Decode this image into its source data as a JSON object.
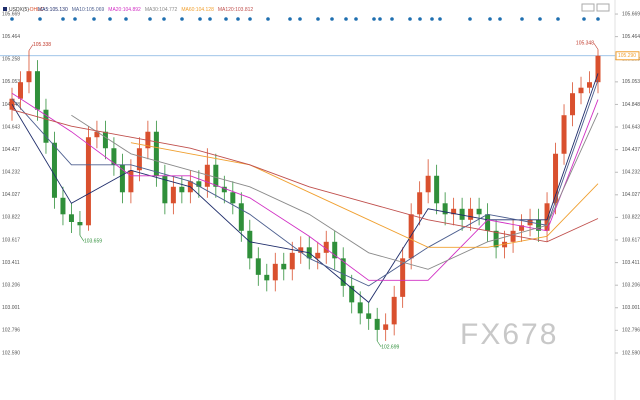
{
  "chart_data": {
    "type": "candlestick",
    "title": "USDX(5)",
    "subtitle": "-OHLC-",
    "open": [
      104.8,
      104.9,
      105.05,
      105.15,
      104.8,
      104.5,
      104.0,
      103.85,
      103.78,
      103.75,
      104.55,
      104.6,
      104.45,
      104.3,
      104.05,
      104.25,
      104.45,
      104.6,
      104.2,
      103.95,
      104.1,
      104.05,
      104.15,
      104.1,
      104.3,
      104.1,
      104.05,
      103.95,
      103.7,
      103.45,
      103.3,
      103.25,
      103.4,
      103.35,
      103.5,
      103.55,
      103.45,
      103.5,
      103.6,
      103.45,
      103.2,
      103.05,
      102.95,
      102.9,
      102.8,
      102.85,
      103.1,
      103.45,
      103.85,
      104.05,
      104.2,
      103.95,
      103.85,
      103.9,
      103.8,
      103.9,
      103.85,
      103.7,
      103.55,
      103.6,
      103.7,
      103.75,
      103.8,
      103.7,
      103.95,
      104.4,
      104.75,
      104.95,
      105.0,
      105.05
    ],
    "high": [
      105.0,
      105.15,
      105.338,
      105.25,
      104.9,
      104.6,
      104.1,
      103.95,
      103.88,
      104.65,
      104.7,
      104.7,
      104.55,
      104.4,
      104.35,
      104.55,
      104.7,
      104.7,
      104.3,
      104.2,
      104.2,
      104.25,
      104.25,
      104.45,
      104.4,
      104.2,
      104.15,
      104.05,
      103.8,
      103.55,
      103.4,
      103.5,
      103.5,
      103.6,
      103.65,
      103.65,
      103.6,
      103.7,
      103.7,
      103.55,
      103.3,
      103.15,
      103.05,
      103.0,
      102.95,
      103.2,
      103.55,
      103.95,
      104.15,
      104.35,
      104.3,
      104.05,
      104.0,
      104.0,
      104.0,
      104.0,
      103.95,
      103.8,
      103.7,
      103.8,
      103.85,
      103.9,
      103.9,
      104.05,
      104.5,
      104.85,
      105.05,
      105.1,
      105.15,
      105.348
    ],
    "low": [
      104.7,
      104.8,
      104.95,
      104.7,
      104.4,
      103.9,
      103.75,
      103.68,
      103.659,
      103.7,
      104.45,
      104.35,
      104.2,
      103.95,
      103.95,
      104.15,
      104.35,
      104.1,
      103.85,
      103.85,
      103.95,
      103.95,
      104.0,
      104.0,
      104.0,
      103.95,
      103.85,
      103.6,
      103.35,
      103.2,
      103.15,
      103.15,
      103.25,
      103.25,
      103.4,
      103.35,
      103.35,
      103.4,
      103.35,
      103.1,
      102.95,
      102.85,
      102.8,
      102.699,
      102.7,
      102.75,
      103.0,
      103.35,
      103.75,
      103.95,
      103.85,
      103.75,
      103.75,
      103.7,
      103.7,
      103.75,
      103.6,
      103.45,
      103.45,
      103.5,
      103.6,
      103.65,
      103.6,
      103.6,
      103.85,
      104.3,
      104.65,
      104.85,
      104.95,
      104.95
    ],
    "close": [
      104.9,
      105.05,
      105.15,
      104.8,
      104.5,
      104.0,
      103.85,
      103.78,
      103.75,
      104.55,
      104.6,
      104.45,
      104.3,
      104.05,
      104.25,
      104.45,
      104.6,
      104.2,
      103.95,
      104.1,
      104.05,
      104.15,
      104.1,
      104.3,
      104.1,
      104.05,
      103.95,
      103.7,
      103.45,
      103.3,
      103.25,
      103.4,
      103.35,
      103.5,
      103.55,
      103.45,
      103.5,
      103.6,
      103.45,
      103.2,
      103.05,
      102.95,
      102.9,
      102.8,
      102.85,
      103.1,
      103.45,
      103.85,
      104.05,
      104.2,
      103.95,
      103.85,
      103.9,
      103.8,
      103.9,
      103.85,
      103.7,
      103.55,
      103.6,
      103.7,
      103.75,
      103.8,
      103.7,
      103.95,
      104.4,
      104.75,
      104.95,
      105.0,
      105.05,
      105.29
    ],
    "up_color": "#d9502e",
    "down_color": "#2f8f3a",
    "ma_x": [
      0,
      7,
      14,
      21,
      28,
      35,
      42,
      49,
      56,
      63,
      69
    ],
    "series": [
      {
        "name": "MA5:105.130",
        "color": "#1f2d6b",
        "values": [
          104.85,
          103.95,
          104.25,
          104.1,
          103.6,
          103.5,
          103.05,
          103.9,
          103.8,
          103.8,
          105.13
        ]
      },
      {
        "name": "MA10:105.069",
        "color": "#4d5f8f",
        "values": [
          104.9,
          104.3,
          104.3,
          104.15,
          103.85,
          103.45,
          103.2,
          103.55,
          103.85,
          103.75,
          105.069
        ]
      },
      {
        "name": "MA20:104.892",
        "color": "#d12fc4",
        "values": [
          104.95,
          104.6,
          104.2,
          104.2,
          104.0,
          103.65,
          103.25,
          103.25,
          103.8,
          103.7,
          104.892
        ]
      },
      {
        "name": "MA30:104.772",
        "color": "#8a8a8a",
        "values": [
          null,
          104.75,
          104.4,
          104.25,
          104.1,
          103.85,
          103.5,
          103.35,
          103.6,
          103.75,
          104.772
        ]
      },
      {
        "name": "MA60:104.128",
        "color": "#f0a030",
        "values": [
          null,
          null,
          104.5,
          104.4,
          104.3,
          104.05,
          103.8,
          103.55,
          103.55,
          103.65,
          104.128
        ]
      },
      {
        "name": "MA120:103.812",
        "color": "#c0504d",
        "values": [
          104.8,
          104.65,
          104.55,
          104.45,
          104.3,
          104.1,
          103.95,
          103.8,
          103.7,
          103.6,
          103.812
        ]
      }
    ],
    "annotations": [
      {
        "label": "105.338",
        "value": 105.338
      },
      {
        "label": "103.659",
        "value": 103.659
      },
      {
        "label": "102.699",
        "value": 102.699
      },
      {
        "label": "105.348",
        "value": 105.348
      }
    ],
    "last_price": {
      "value": 105.29,
      "label": "105.290"
    },
    "ylim": [
      102.481,
      105.724
    ],
    "yticks": [
      {
        "value": 102.59,
        "label": "102.590"
      },
      102.796,
      103.001,
      103.206,
      103.411,
      103.617,
      103.822,
      104.027,
      104.232,
      104.437,
      104.643,
      104.848,
      105.053,
      105.258,
      105.464,
      105.669
    ],
    "grid": false,
    "watermark": "FX678"
  }
}
